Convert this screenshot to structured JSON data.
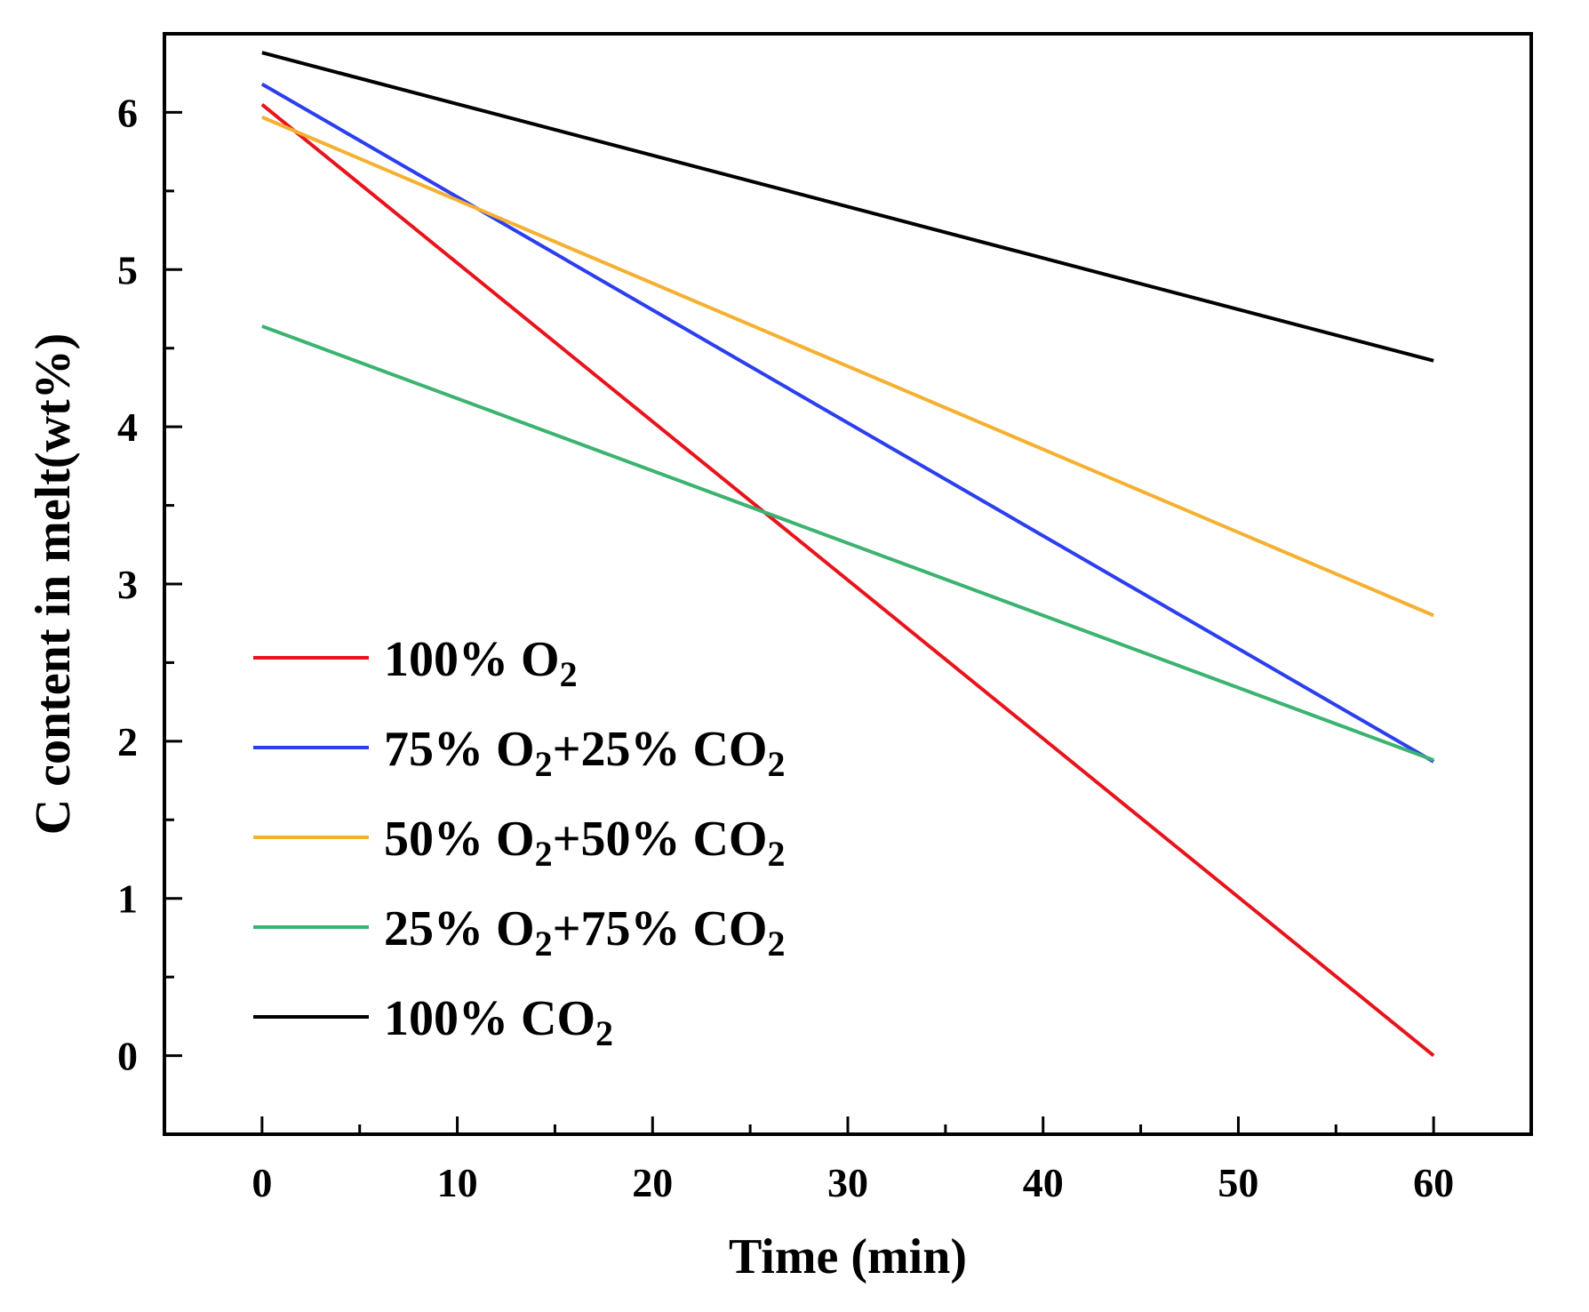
{
  "chart_data": {
    "type": "line",
    "title": "",
    "xlabel": "Time (min)",
    "ylabel": "C content in melt(wt%)",
    "xlim": [
      -5,
      65
    ],
    "ylim": [
      -0.5,
      6.5
    ],
    "xticks": [
      0,
      10,
      20,
      30,
      40,
      50,
      60
    ],
    "yticks": [
      0,
      1,
      2,
      3,
      4,
      5,
      6
    ],
    "x_tick_labels": [
      "0",
      "10",
      "20",
      "30",
      "40",
      "50",
      "60"
    ],
    "y_tick_labels": [
      "0",
      "1",
      "2",
      "3",
      "4",
      "5",
      "6"
    ],
    "grid": false,
    "legend_position": "left",
    "series": [
      {
        "name": "100% O2",
        "label_parts": [
          "100% O",
          "2",
          ""
        ],
        "color": "#e8141c",
        "x": [
          0,
          60
        ],
        "values": [
          6.05,
          0.0
        ]
      },
      {
        "name": "75% O2+25% CO2",
        "label_parts": [
          "75% O",
          "2",
          "+25% CO",
          "2",
          ""
        ],
        "color": "#2b3ef0",
        "x": [
          0,
          60
        ],
        "values": [
          6.18,
          1.87
        ]
      },
      {
        "name": "50% O2+50% CO2",
        "label_parts": [
          "50% O",
          "2",
          "+50% CO",
          "2",
          ""
        ],
        "color": "#f5b031",
        "x": [
          0,
          60
        ],
        "values": [
          5.97,
          2.8
        ]
      },
      {
        "name": "25% O2+75% CO2",
        "label_parts": [
          "25% O",
          "2",
          "+75% CO",
          "2",
          ""
        ],
        "color": "#3cb371",
        "x": [
          0,
          60
        ],
        "values": [
          4.64,
          1.88
        ]
      },
      {
        "name": "100% CO2",
        "label_parts": [
          "100% CO",
          "2",
          ""
        ],
        "color": "#000000",
        "x": [
          0,
          60
        ],
        "values": [
          6.38,
          4.42
        ]
      }
    ]
  }
}
